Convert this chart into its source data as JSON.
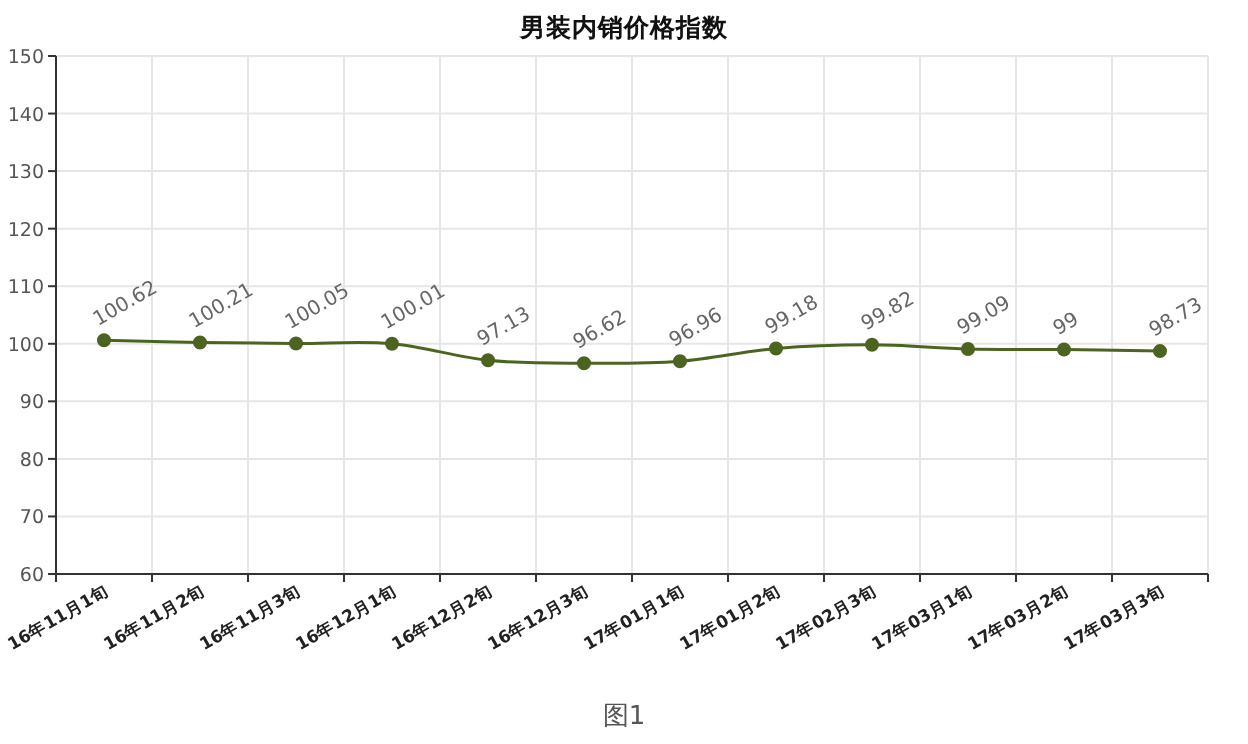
{
  "chart_data": {
    "type": "line",
    "title": "男装内销价格指数",
    "categories": [
      "16年11月1旬",
      "16年11月2旬",
      "16年11月3旬",
      "16年12月1旬",
      "16年12月2旬",
      "16年12月3旬",
      "17年01月1旬",
      "17年01月2旬",
      "17年02月3旬",
      "17年03月1旬",
      "17年03月2旬",
      "17年03月3旬"
    ],
    "series": [
      {
        "color": "#4b6521",
        "values": [
          100.62,
          100.21,
          100.05,
          100.01,
          97.13,
          96.62,
          96.96,
          99.18,
          99.82,
          99.09,
          99,
          98.73
        ]
      }
    ],
    "ylim": [
      60,
      150
    ],
    "yticks": [
      60,
      70,
      80,
      90,
      100,
      110,
      120,
      130,
      140,
      150
    ],
    "grid": true,
    "marker": "circle",
    "data_labels": true,
    "annotations": [
      "图1"
    ]
  }
}
